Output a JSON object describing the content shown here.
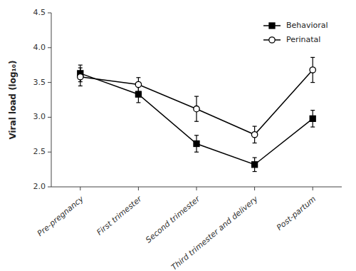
{
  "chart_data": {
    "type": "line",
    "ylabel": "Viral load (log₁₀)",
    "categories": [
      "Pre-pregnancy",
      "First trimester",
      "Second trimester",
      "Third trimester and delivery",
      "Post-partum"
    ],
    "series": [
      {
        "name": "Behavioral",
        "color": "#000000",
        "marker": "square",
        "values": [
          3.63,
          3.33,
          2.62,
          2.32,
          2.98
        ],
        "errors": [
          0.12,
          0.12,
          0.12,
          0.1,
          0.12
        ]
      },
      {
        "name": "Perinatal",
        "color": "#000000",
        "marker": "open-circle",
        "values": [
          3.58,
          3.47,
          3.12,
          2.75,
          3.68
        ],
        "errors": [
          0.13,
          0.1,
          0.18,
          0.12,
          0.18
        ]
      }
    ],
    "ylim": [
      2.0,
      4.5
    ],
    "yticks": [
      {
        "value": 2.0,
        "label": "2.0"
      },
      2.5,
      {
        "value": 3.0,
        "label": "3.0"
      },
      3.5,
      {
        "value": 4.0,
        "label": "4.0"
      },
      4.5
    ],
    "grid": false,
    "legend": "upper right"
  }
}
